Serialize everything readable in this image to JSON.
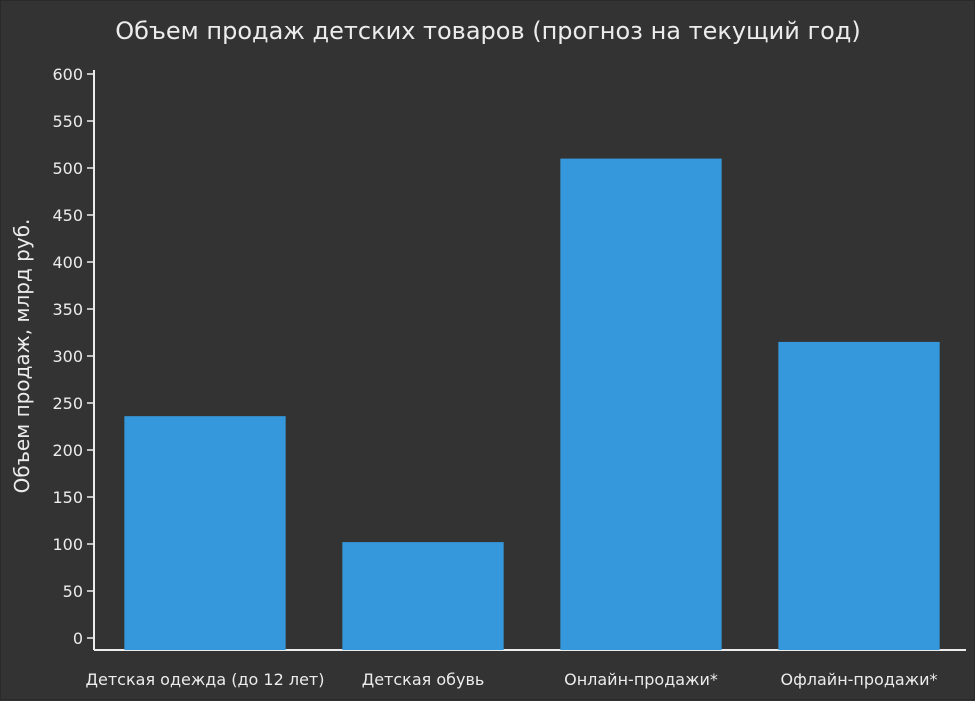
{
  "chart_data": {
    "type": "bar",
    "title": "Объем продаж детских товаров (прогноз на текущий год)",
    "xlabel": "",
    "ylabel": "Объем продаж, млрд руб.",
    "categories": [
      "Детская одежда (до 12 лет)",
      "Детская обувь",
      "Онлайн-продажи*",
      "Офлайн-продажи*"
    ],
    "values": [
      236,
      102,
      510,
      315
    ],
    "ylim": [
      0,
      600
    ],
    "yticks": [
      0,
      50,
      100,
      150,
      200,
      250,
      300,
      350,
      400,
      450,
      500,
      550,
      600
    ],
    "grid": false,
    "legend": "none",
    "colors": {
      "background": "#333333",
      "bar": "#3598dc",
      "text": "#ececec",
      "axis": "#ececec"
    }
  }
}
